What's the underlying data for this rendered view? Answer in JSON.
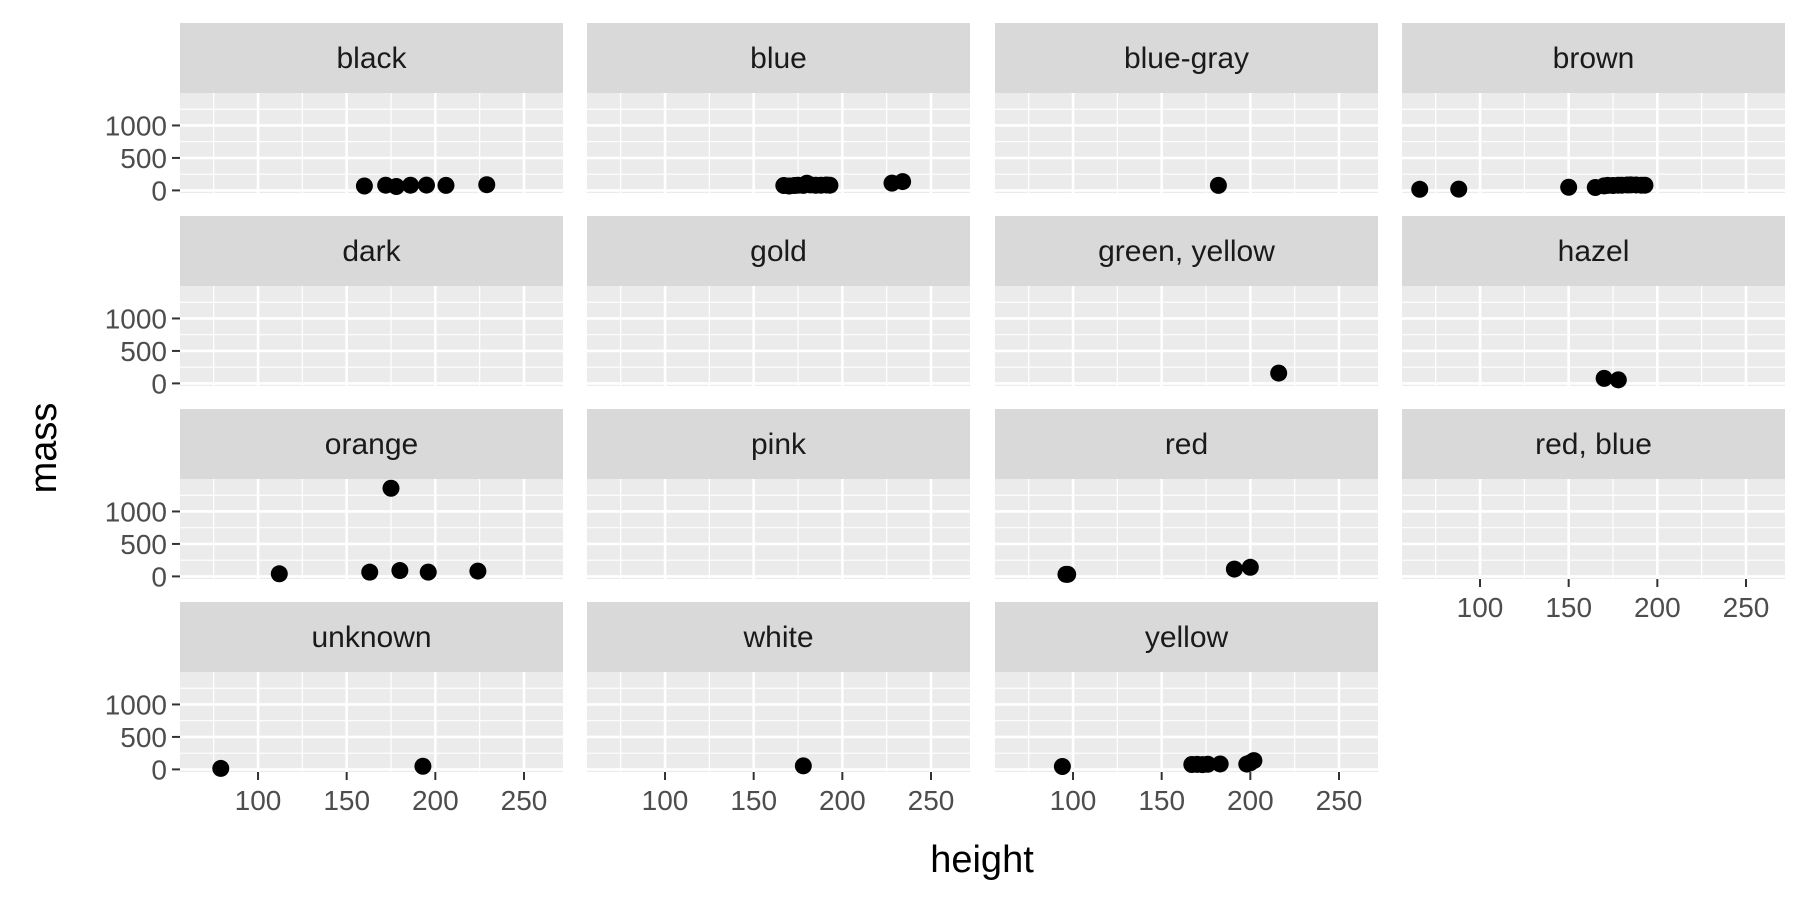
{
  "chart_data": {
    "type": "scatter",
    "facet_variable": "eye color",
    "xlabel": "height",
    "ylabel": "mass",
    "xlim": [
      56,
      272
    ],
    "ylim": [
      -40,
      1500
    ],
    "x_ticks": [
      100,
      150,
      200,
      250
    ],
    "y_ticks": [
      0,
      500,
      1000
    ],
    "grid": true,
    "colors": {
      "panel_bg": "#ebebeb",
      "strip_bg": "#d9d9d9",
      "grid": "#ffffff",
      "point": "#000000"
    },
    "panels": [
      {
        "label": "black",
        "points": [
          [
            160,
            68
          ],
          [
            172,
            80
          ],
          [
            178,
            60
          ],
          [
            186,
            80
          ],
          [
            195,
            82
          ],
          [
            206,
            78
          ],
          [
            229,
            88
          ]
        ]
      },
      {
        "label": "blue",
        "points": [
          [
            167,
            75
          ],
          [
            170,
            68
          ],
          [
            173,
            75
          ],
          [
            175,
            80
          ],
          [
            178,
            77
          ],
          [
            180,
            110
          ],
          [
            182,
            85
          ],
          [
            185,
            79
          ],
          [
            188,
            80
          ],
          [
            191,
            84
          ],
          [
            193,
            80
          ],
          [
            228,
            112
          ],
          [
            234,
            136
          ]
        ]
      },
      {
        "label": "blue-gray",
        "points": [
          [
            182,
            77
          ]
        ]
      },
      {
        "label": "brown",
        "points": [
          [
            66,
            17
          ],
          [
            88,
            20
          ],
          [
            150,
            49
          ],
          [
            165,
            45
          ],
          [
            170,
            70
          ],
          [
            172,
            77
          ],
          [
            175,
            75
          ],
          [
            178,
            80
          ],
          [
            180,
            80
          ],
          [
            183,
            84
          ],
          [
            185,
            85
          ],
          [
            188,
            84
          ],
          [
            191,
            80
          ],
          [
            193,
            80
          ]
        ]
      },
      {
        "label": "dark",
        "points": []
      },
      {
        "label": "gold",
        "points": []
      },
      {
        "label": "green, yellow",
        "points": [
          [
            216,
            159
          ]
        ]
      },
      {
        "label": "hazel",
        "points": [
          [
            170,
            77
          ],
          [
            178,
            55
          ]
        ]
      },
      {
        "label": "orange",
        "points": [
          [
            112,
            40
          ],
          [
            163,
            65
          ],
          [
            175,
            1358
          ],
          [
            180,
            90
          ],
          [
            196,
            66
          ],
          [
            224,
            82
          ]
        ]
      },
      {
        "label": "pink",
        "points": []
      },
      {
        "label": "red",
        "points": [
          [
            96,
            32
          ],
          [
            97,
            32
          ],
          [
            191,
            113
          ],
          [
            200,
            140
          ]
        ]
      },
      {
        "label": "red, blue",
        "points": []
      },
      {
        "label": "unknown",
        "points": [
          [
            79,
            15
          ],
          [
            193,
            48
          ]
        ]
      },
      {
        "label": "white",
        "points": [
          [
            178,
            55
          ]
        ]
      },
      {
        "label": "yellow",
        "points": [
          [
            94,
            45
          ],
          [
            167,
            75
          ],
          [
            170,
            77
          ],
          [
            173,
            74
          ],
          [
            176,
            79
          ],
          [
            183,
            84
          ],
          [
            198,
            82
          ],
          [
            200,
            102
          ],
          [
            202,
            136
          ]
        ]
      }
    ]
  }
}
